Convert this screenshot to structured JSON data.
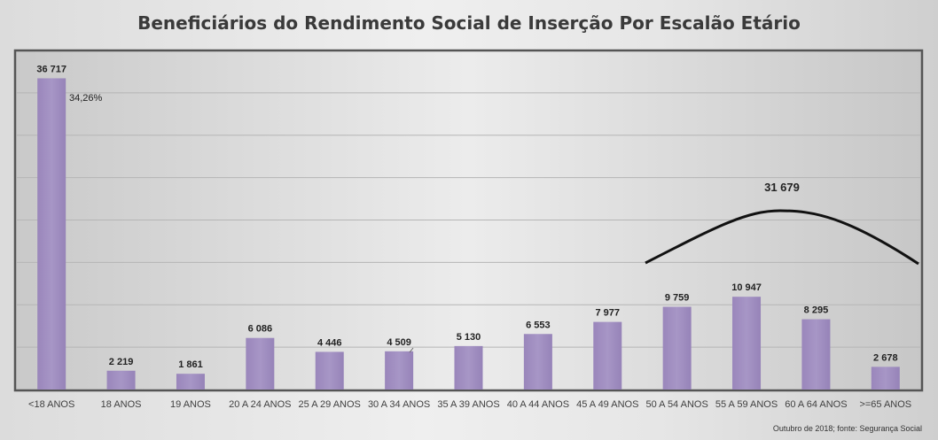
{
  "chart_data": {
    "type": "bar",
    "title": "Beneficiários do Rendimento Social de Inserção Por Escalão Etário",
    "categories": [
      "<18 ANOS",
      "18 ANOS",
      "19 ANOS",
      "20 A 24 ANOS",
      "25 A 29 ANOS",
      "30 A 34 ANOS",
      "35 A 39 ANOS",
      "40 A 44 ANOS",
      "45 A 49 ANOS",
      "50 A 54 ANOS",
      "55 A 59 ANOS",
      "60 A 64 ANOS",
      ">=65 ANOS"
    ],
    "values": [
      36717,
      2219,
      1861,
      6086,
      4446,
      4509,
      5130,
      6553,
      7977,
      9759,
      10947,
      8295,
      2678
    ],
    "value_labels": [
      "36 717",
      "2 219",
      "1 861",
      "6 086",
      "4 446",
      "4 509",
      "5 130",
      "6 553",
      "7 977",
      "9 759",
      "10 947",
      "8 295",
      "2 678"
    ],
    "ylim": [
      0,
      40000
    ],
    "grid": true,
    "bar_color": "#a08ebf",
    "annotations": {
      "first_bar_share": "34,26%",
      "arc_total": "31 679"
    },
    "source": "Outubro de 2018;  fonte: Segurança Social"
  }
}
